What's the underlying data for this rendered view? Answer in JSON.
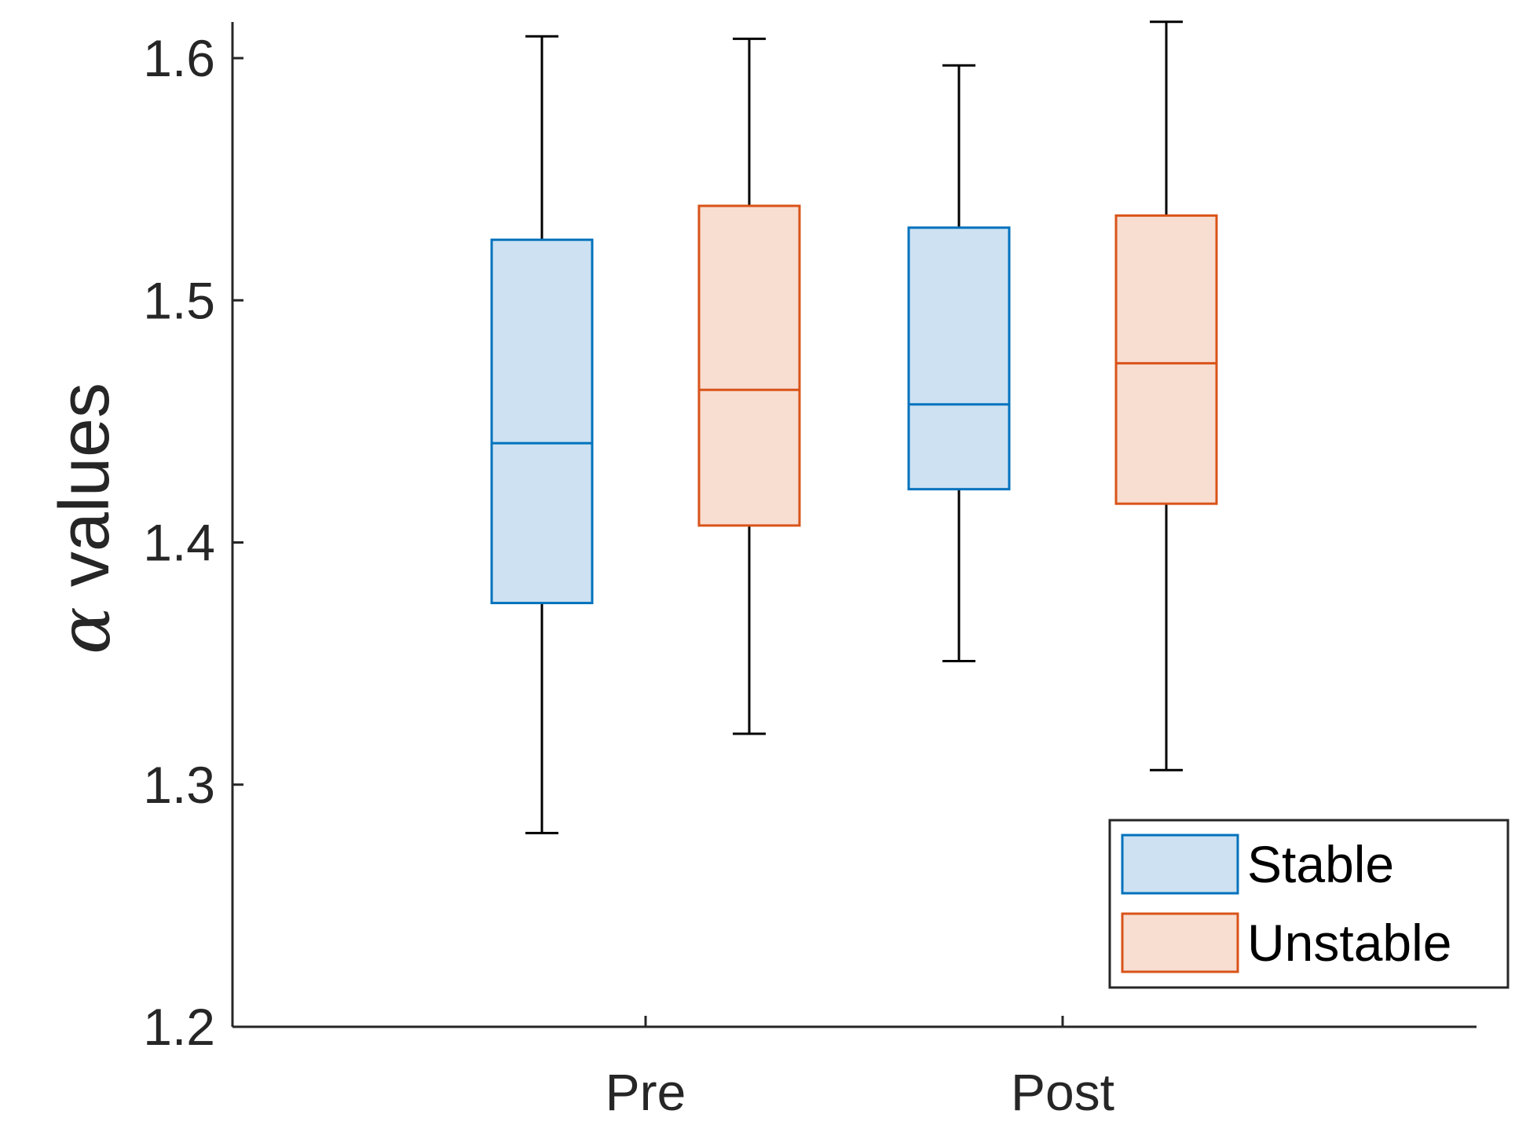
{
  "chart_data": {
    "type": "boxplot",
    "title": "",
    "xlabel": "",
    "ylabel": "values",
    "ylabel_symbol": "α",
    "categories": [
      "Pre",
      "Post"
    ],
    "yticks": [
      "1.2",
      "1.3",
      "1.4",
      "1.5",
      "1.6"
    ],
    "ylim": [
      1.2,
      1.615
    ],
    "series": [
      {
        "name": "Stable",
        "color": "#0072BD",
        "fill": "#CDE1F2",
        "boxes": [
          {
            "category": "Pre",
            "whisker_low": 1.28,
            "q1": 1.375,
            "median": 1.441,
            "q3": 1.525,
            "whisker_high": 1.609
          },
          {
            "category": "Post",
            "whisker_low": 1.351,
            "q1": 1.422,
            "median": 1.457,
            "q3": 1.53,
            "whisker_high": 1.597
          }
        ]
      },
      {
        "name": "Unstable",
        "color": "#D95319",
        "fill": "#F8DDD1",
        "boxes": [
          {
            "category": "Pre",
            "whisker_low": 1.321,
            "q1": 1.407,
            "median": 1.463,
            "q3": 1.539,
            "whisker_high": 1.608
          },
          {
            "category": "Post",
            "whisker_low": 1.306,
            "q1": 1.416,
            "median": 1.474,
            "q3": 1.535,
            "whisker_high": 1.615
          }
        ]
      }
    ],
    "legend": {
      "position": "bottom-right",
      "entries": [
        "Stable",
        "Unstable"
      ]
    },
    "grid": false
  }
}
